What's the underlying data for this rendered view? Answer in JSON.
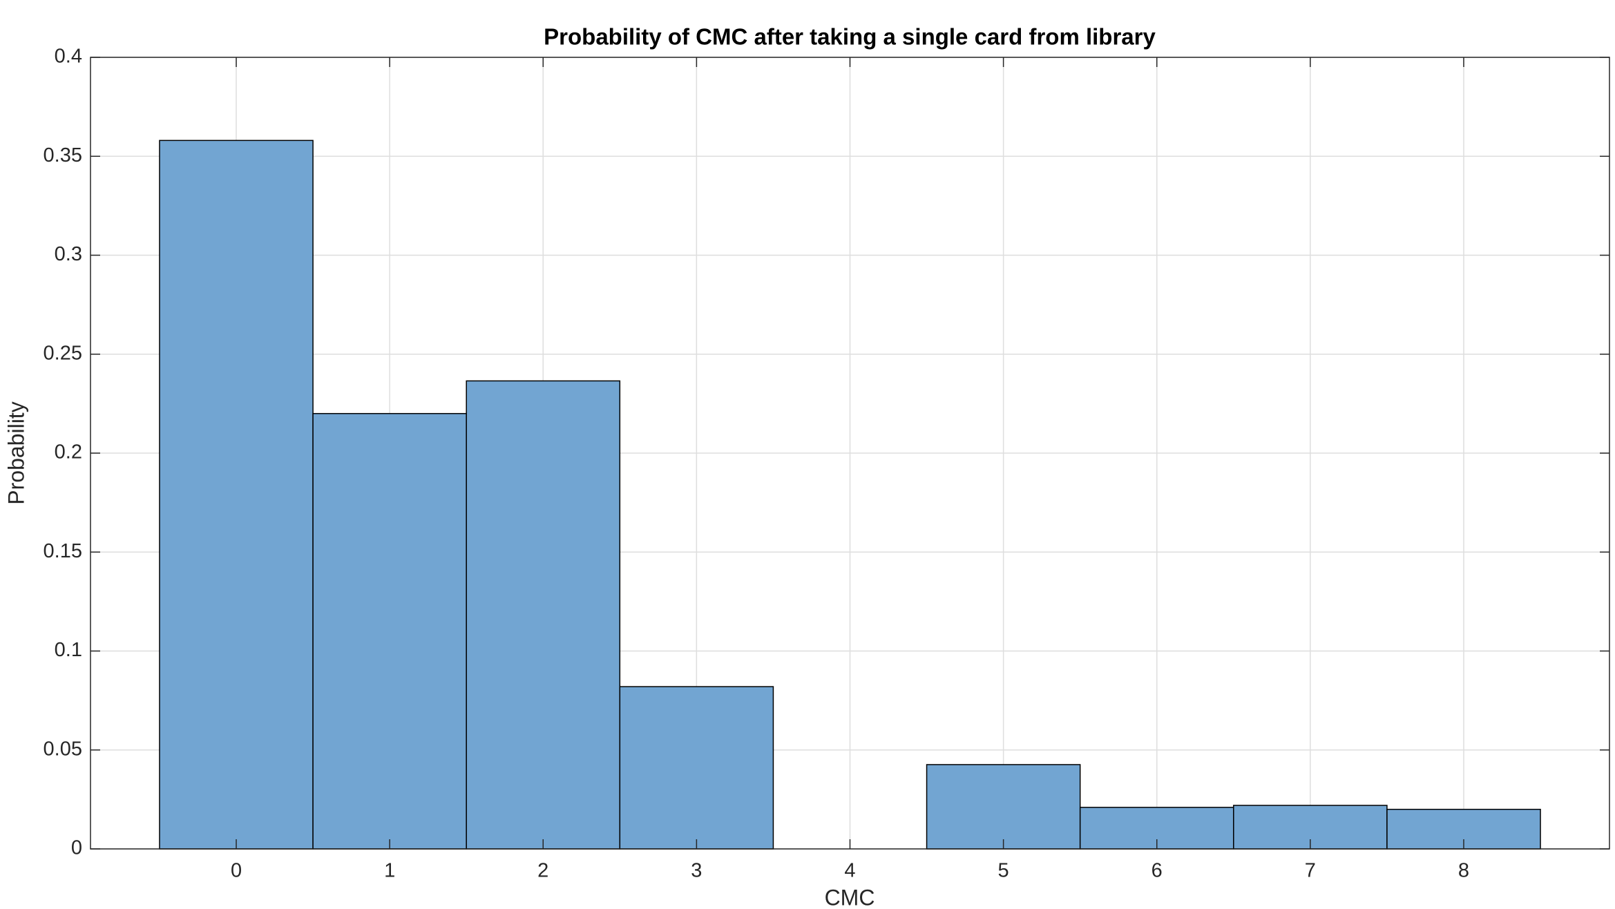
{
  "chart_data": {
    "type": "histogram",
    "title": "Probability of CMC after taking a single card from library",
    "x_label": "CMC",
    "y_label": "Probability",
    "bins": [
      -0.5,
      0.5,
      1.5,
      2.5,
      3.5,
      4.5,
      5.5,
      6.5,
      7.5,
      8.5
    ],
    "values": [
      0.358,
      0.22,
      0.2365,
      0.082,
      0,
      0.0426,
      0.021,
      0.022,
      0.02
    ],
    "color": "#72a5d2",
    "edge_color": "#000000",
    "xlim": [
      -0.95,
      8.95
    ],
    "xticks": [
      0,
      1,
      2,
      3,
      4,
      5,
      6,
      7,
      8
    ],
    "ylim": [
      0,
      0.4
    ],
    "yticks": [
      0,
      0.05,
      0.1,
      0.15,
      0.2,
      0.25,
      0.3,
      0.35,
      0.4
    ],
    "grid": true
  }
}
